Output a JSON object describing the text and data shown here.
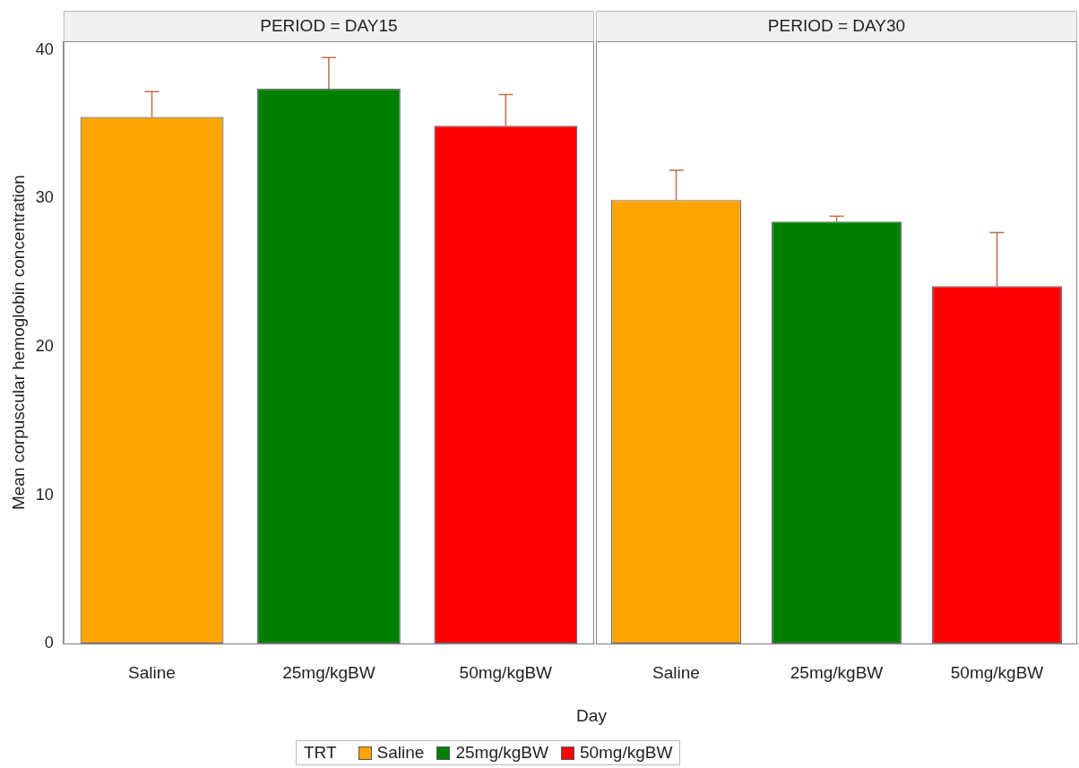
{
  "chart_data": [
    {
      "type": "bar",
      "title": "PERIOD = DAY15",
      "xlabel": "Day",
      "ylabel": "Mean corpuscular hemoglobin concentration",
      "legend_title": "TRT",
      "legend": "bottom",
      "categories": [
        "Saline",
        "25mg/kgBW",
        "50mg/kgBW"
      ],
      "ylim": [
        0,
        40.6
      ],
      "yticks": [
        0,
        10,
        20,
        30,
        40
      ],
      "grid": false,
      "series": [
        {
          "name": "Saline",
          "color": "#ffa500",
          "values": [
            35.5,
            null,
            null
          ],
          "errors": [
            [
              35.5,
              37.2
            ],
            null,
            null
          ]
        },
        {
          "name": "25mg/kgBW",
          "color": "#008000",
          "values": [
            null,
            37.4,
            null
          ],
          "errors": [
            null,
            [
              37.4,
              39.5
            ],
            null
          ]
        },
        {
          "name": "50mg/kgBW",
          "color": "#ff0000",
          "values": [
            null,
            null,
            34.9
          ],
          "errors": [
            null,
            null,
            [
              34.9,
              37.0
            ]
          ]
        }
      ]
    },
    {
      "type": "bar",
      "title": "PERIOD = DAY30",
      "categories": [
        "Saline",
        "25mg/kgBW",
        "50mg/kgBW"
      ],
      "ylim": [
        0,
        40.6
      ],
      "yticks": [
        0,
        10,
        20,
        30,
        40
      ],
      "grid": false,
      "tick_labels": "x",
      "series": [
        {
          "color": "#ffa500",
          "values": [
            29.9,
            null,
            null
          ],
          "errors": [
            [
              29.9,
              31.9
            ],
            null,
            null
          ]
        },
        {
          "color": "#008000",
          "values": [
            null,
            28.45,
            null
          ],
          "errors": [
            null,
            [
              28.45,
              28.8
            ],
            null
          ]
        },
        {
          "color": "#ff0000",
          "values": [
            null,
            null,
            24.1
          ],
          "errors": [
            null,
            null,
            [
              24.1,
              27.7
            ]
          ]
        }
      ]
    }
  ]
}
